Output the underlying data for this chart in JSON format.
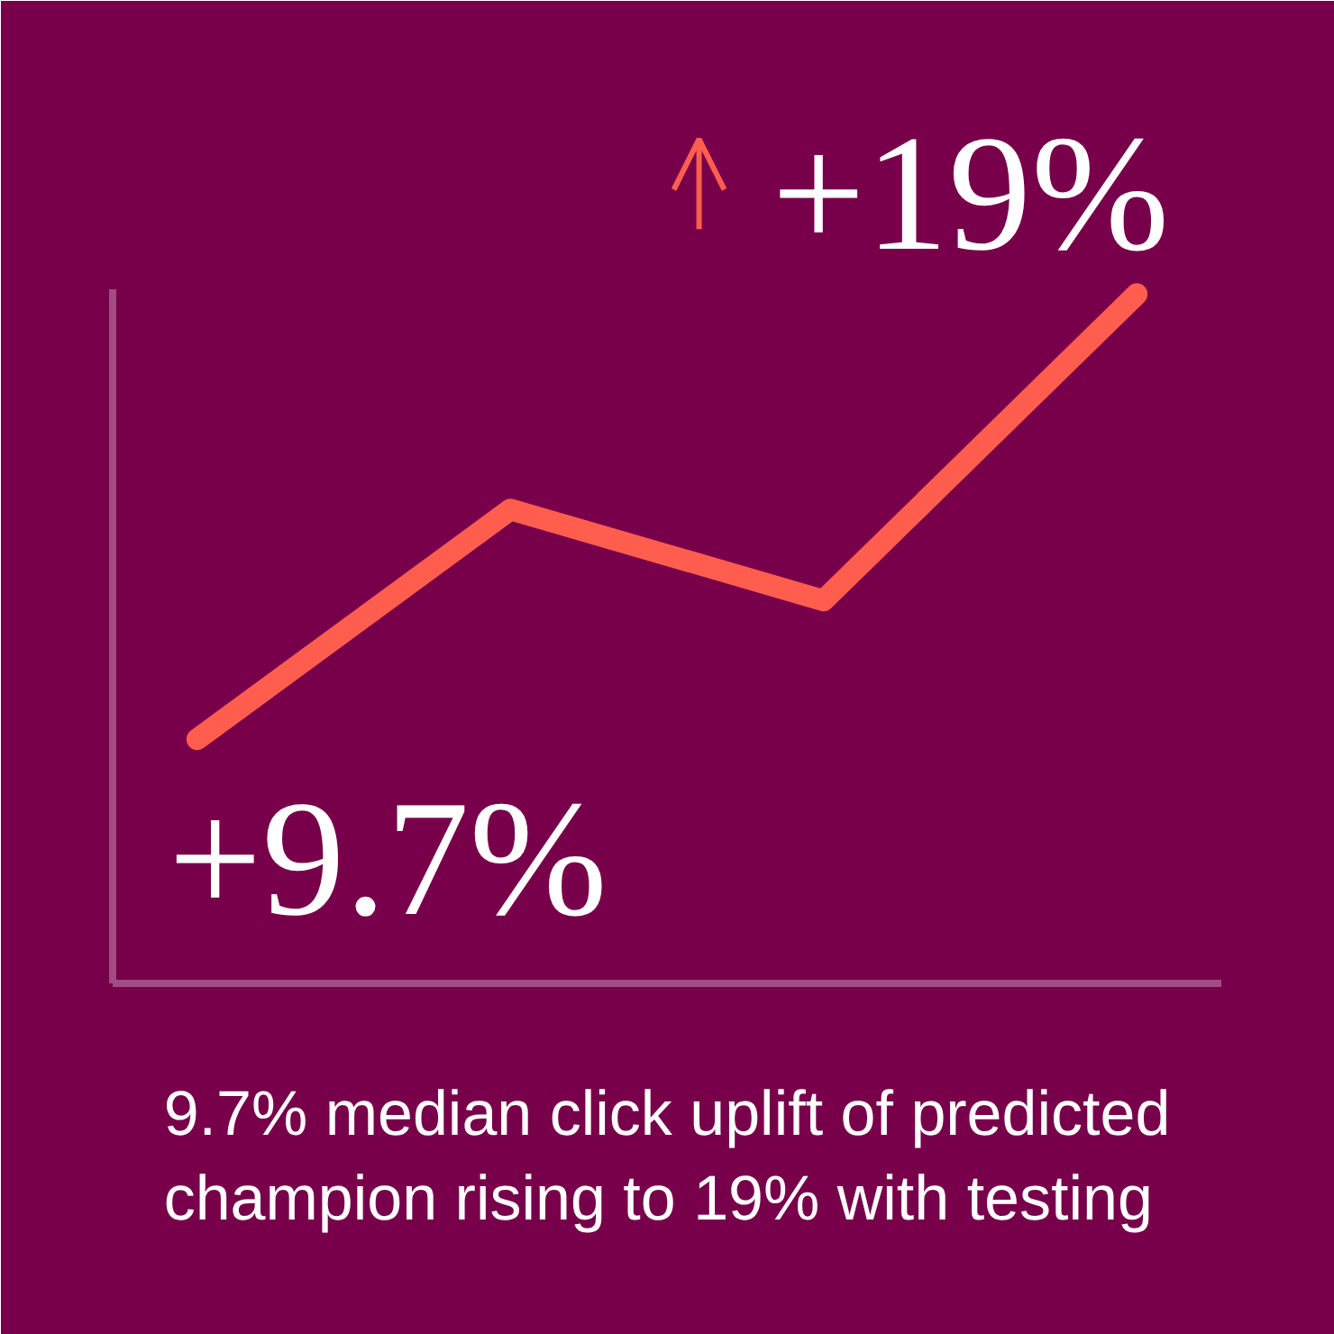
{
  "chart_data": {
    "type": "line",
    "categories": [
      null,
      null,
      null,
      null
    ],
    "values": [
      9.7,
      14.5,
      12.6,
      19
    ],
    "color": "#ff5e4e",
    "value_labels": [
      "+9.7%",
      null,
      null,
      "+19%"
    ],
    "ylim": [
      4.6,
      19.1
    ],
    "marker": "none",
    "line_style": "solid",
    "annotations": [
      "9.7% median click uplift of predicted champion rising to 19% with testing"
    ]
  }
}
